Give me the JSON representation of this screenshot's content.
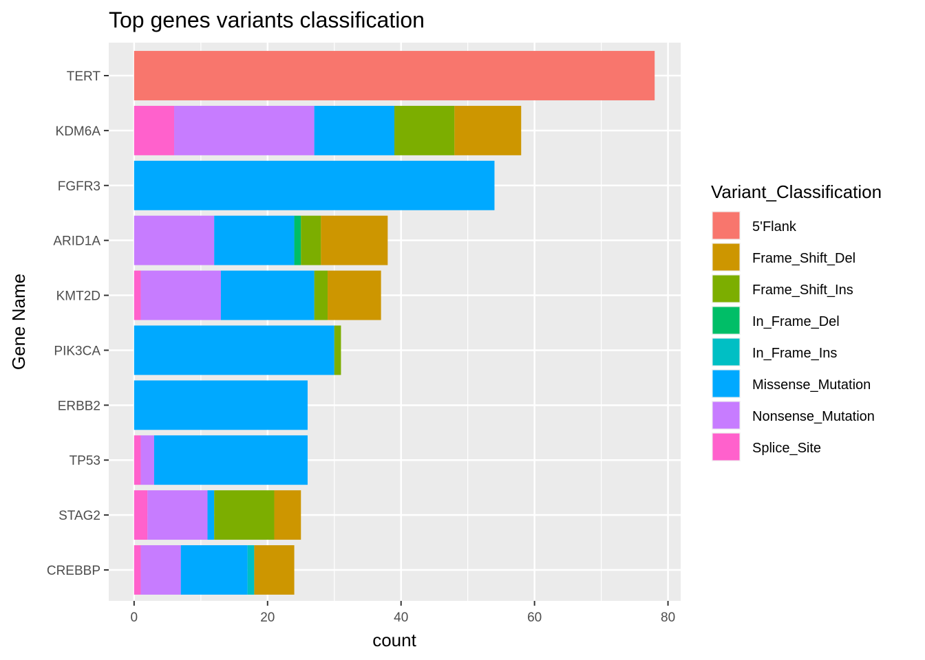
{
  "chart_data": {
    "type": "bar",
    "orientation": "horizontal",
    "stacked": true,
    "title": "Top genes variants classification",
    "xlabel": "count",
    "ylabel": "Gene Name",
    "xlim": [
      -3.8,
      81.9
    ],
    "xticks": [
      0,
      20,
      40,
      60,
      80
    ],
    "grid": true,
    "legend_position": "right",
    "legend_title": "Variant_Classification",
    "categories": [
      "TERT",
      "KDM6A",
      "FGFR3",
      "ARID1A",
      "KMT2D",
      "PIK3CA",
      "ERBB2",
      "TP53",
      "STAG2",
      "CREBBP"
    ],
    "series": [
      {
        "name": "5'Flank",
        "color": "#F8766D",
        "values": [
          78,
          0,
          0,
          0,
          0,
          0,
          0,
          0,
          0,
          0
        ]
      },
      {
        "name": "Frame_Shift_Del",
        "color": "#CD9600",
        "values": [
          0,
          10,
          0,
          10,
          8,
          0,
          0,
          0,
          4,
          6
        ]
      },
      {
        "name": "Frame_Shift_Ins",
        "color": "#7CAE00",
        "values": [
          0,
          9,
          0,
          3,
          2,
          1,
          0,
          0,
          9,
          0
        ]
      },
      {
        "name": "In_Frame_Del",
        "color": "#00BE67",
        "values": [
          0,
          0,
          0,
          1,
          0,
          0,
          0,
          0,
          0,
          0
        ]
      },
      {
        "name": "In_Frame_Ins",
        "color": "#00BFC4",
        "values": [
          0,
          0,
          0,
          0,
          0,
          0,
          0,
          0,
          0,
          1
        ]
      },
      {
        "name": "Missense_Mutation",
        "color": "#00A9FF",
        "values": [
          0,
          12,
          54,
          12,
          14,
          30,
          26,
          23,
          1,
          10
        ]
      },
      {
        "name": "Nonsense_Mutation",
        "color": "#C77CFF",
        "values": [
          0,
          21,
          0,
          12,
          12,
          0,
          0,
          2,
          9,
          6
        ]
      },
      {
        "name": "Splice_Site",
        "color": "#FF61CC",
        "values": [
          0,
          6,
          0,
          0,
          1,
          0,
          0,
          1,
          2,
          1
        ]
      }
    ]
  }
}
